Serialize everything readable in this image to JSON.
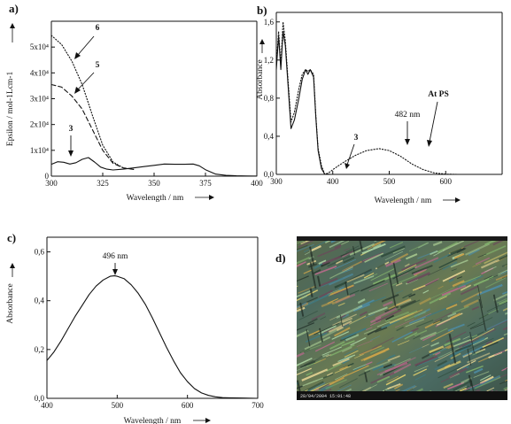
{
  "figure": {
    "panels": [
      {
        "letter": "a)"
      },
      {
        "letter": "b)"
      },
      {
        "letter": "c)"
      },
      {
        "letter": "d)"
      }
    ],
    "micrograph_caption": "28/04/2004 15:01:48"
  },
  "chart_data": [
    {
      "type": "line",
      "panel": "a",
      "xlabel": "Wavelength / nm",
      "ylabel": "Epsilon / mol-1Lcm-1",
      "xlim": [
        300,
        400
      ],
      "ylim": [
        0,
        60000
      ],
      "xticks": [
        300,
        325,
        350,
        375,
        400
      ],
      "yticks": [
        {
          "value": 0,
          "label": "0"
        },
        {
          "value": 10000,
          "label": "1x10⁴"
        },
        {
          "value": 20000,
          "label": "2x10⁴"
        },
        {
          "value": 30000,
          "label": "3x10⁴"
        },
        {
          "value": 40000,
          "label": "4x10⁴"
        },
        {
          "value": 50000,
          "label": "5x10⁴"
        }
      ],
      "annotations": [
        {
          "text": "6"
        },
        {
          "text": "5"
        },
        {
          "text": "3"
        }
      ],
      "series": [
        {
          "style": "dotted",
          "x": [
            300,
            305,
            310,
            315,
            320,
            325,
            330,
            335,
            340
          ],
          "y": [
            54500,
            51000,
            44500,
            35500,
            23500,
            12000,
            5500,
            3200,
            2600
          ]
        },
        {
          "style": "dashed",
          "x": [
            300,
            305,
            310,
            315,
            320,
            325,
            330,
            335,
            340
          ],
          "y": [
            35500,
            34500,
            31000,
            26000,
            18000,
            10000,
            5000,
            3200,
            2600
          ]
        },
        {
          "style": "solid",
          "x": [
            300,
            303,
            306,
            309,
            312,
            315,
            318,
            321,
            324,
            327,
            330,
            335,
            340,
            345,
            350,
            355,
            360,
            365,
            369,
            372,
            375,
            380,
            385,
            390,
            395,
            400
          ],
          "y": [
            4600,
            5600,
            5400,
            4700,
            5200,
            6500,
            7200,
            5500,
            3500,
            2700,
            2400,
            2700,
            3200,
            3700,
            4200,
            4700,
            4600,
            4600,
            4700,
            4000,
            2500,
            800,
            300,
            150,
            80,
            50
          ]
        }
      ]
    },
    {
      "type": "line",
      "panel": "b",
      "xlabel": "Wavelength / nm",
      "ylabel": "Absorbance",
      "xlim": [
        300,
        700
      ],
      "ylim": [
        0,
        1.7
      ],
      "xticks": [
        300,
        400,
        500,
        600
      ],
      "yticks": [
        {
          "value": 0.0,
          "label": "0,0"
        },
        {
          "value": 0.4,
          "label": "0,4"
        },
        {
          "value": 0.8,
          "label": "0,8"
        },
        {
          "value": 1.2,
          "label": "1,2"
        },
        {
          "value": 1.6,
          "label": "1,6"
        }
      ],
      "annotations": [
        {
          "text": "3"
        },
        {
          "text": "482 nm"
        },
        {
          "text": "At PS"
        }
      ],
      "series": [
        {
          "style": "solid",
          "x": [
            300,
            304,
            308,
            312,
            316,
            320,
            326,
            332,
            340,
            346,
            352,
            356,
            360,
            366,
            370,
            374,
            380,
            386,
            390,
            396,
            400,
            410,
            420
          ],
          "y": [
            1.1,
            1.45,
            1.1,
            1.5,
            1.35,
            1.0,
            0.48,
            0.57,
            0.8,
            1.0,
            1.1,
            1.05,
            1.1,
            1.02,
            0.6,
            0.25,
            0.06,
            0.0,
            0.005,
            0.0,
            0.0,
            0.0,
            0.0
          ]
        },
        {
          "style": "dotted",
          "x": [
            300,
            304,
            308,
            312,
            316,
            320,
            326,
            332,
            340,
            346,
            352,
            356,
            360,
            366,
            370,
            374,
            380,
            386,
            390,
            396,
            400,
            410,
            420,
            440,
            460,
            482,
            500,
            520,
            540,
            560,
            580,
            600,
            620
          ],
          "y": [
            1.15,
            1.5,
            1.15,
            1.6,
            1.4,
            1.05,
            0.55,
            0.65,
            0.9,
            1.05,
            1.1,
            1.08,
            1.1,
            1.05,
            0.62,
            0.27,
            0.09,
            0.0,
            0.01,
            0.03,
            0.05,
            0.09,
            0.13,
            0.2,
            0.25,
            0.27,
            0.25,
            0.19,
            0.11,
            0.05,
            0.015,
            0.003,
            0.0
          ]
        }
      ]
    },
    {
      "type": "line",
      "panel": "c",
      "xlabel": "Wavelength / nm",
      "ylabel": "Absorbance",
      "xlim": [
        400,
        700
      ],
      "ylim": [
        0,
        0.66
      ],
      "xticks": [
        400,
        500,
        600,
        700
      ],
      "yticks": [
        {
          "value": 0.0,
          "label": "0,0"
        },
        {
          "value": 0.2,
          "label": "0,2"
        },
        {
          "value": 0.4,
          "label": "0,4"
        },
        {
          "value": 0.6,
          "label": "0,6"
        }
      ],
      "annotations": [
        {
          "text": "496 nm"
        }
      ],
      "series": [
        {
          "style": "solid",
          "x": [
            400,
            410,
            420,
            430,
            440,
            450,
            460,
            470,
            480,
            490,
            496,
            500,
            510,
            520,
            530,
            540,
            550,
            560,
            570,
            580,
            590,
            600,
            610,
            620,
            630,
            640,
            650,
            660,
            680,
            700
          ],
          "y": [
            0.155,
            0.19,
            0.235,
            0.285,
            0.335,
            0.38,
            0.425,
            0.46,
            0.485,
            0.5,
            0.502,
            0.5,
            0.49,
            0.465,
            0.43,
            0.385,
            0.33,
            0.27,
            0.21,
            0.155,
            0.105,
            0.068,
            0.04,
            0.022,
            0.012,
            0.006,
            0.003,
            0.002,
            0.001,
            0.0
          ]
        }
      ]
    }
  ]
}
